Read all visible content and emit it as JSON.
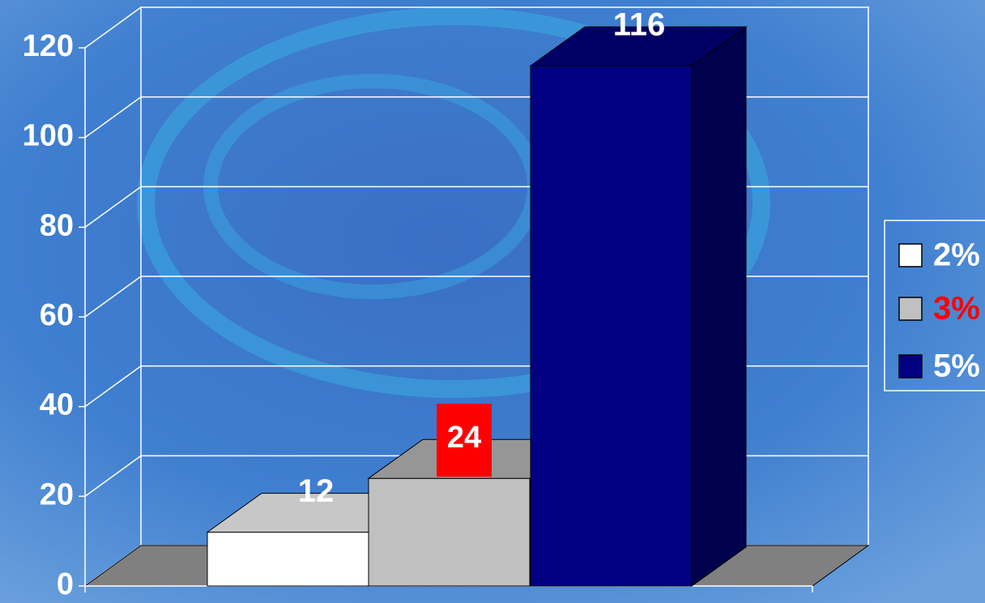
{
  "chart_data": {
    "type": "bar3d",
    "series": [
      {
        "name": "2%",
        "color": "#ffffff",
        "values": [
          12
        ],
        "legend_text_color": "#ffffff"
      },
      {
        "name": "3%",
        "color": "#c0c0c0",
        "values": [
          24
        ],
        "legend_text_color": "#ff0000",
        "value_label_background": "#ff0000"
      },
      {
        "name": "5%",
        "color": "#000080",
        "values": [
          116
        ],
        "legend_text_color": "#ffffff"
      }
    ],
    "ylim": [
      0,
      120
    ],
    "yticks": [
      0,
      20,
      40,
      60,
      80,
      100,
      120
    ],
    "grid": true,
    "legend": "right"
  }
}
